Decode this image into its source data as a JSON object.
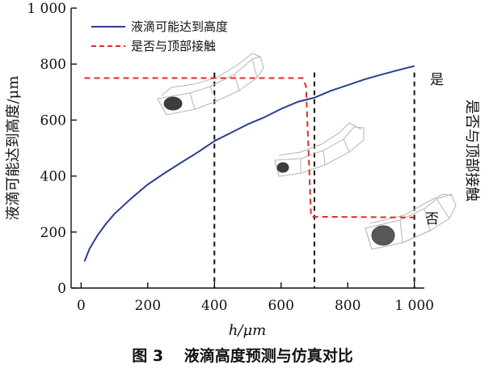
{
  "caption": "图 3　 液滴高度预测与仿真对比",
  "colors": {
    "series_height": "#2c3e8f",
    "series_contact": "#e02b2b",
    "guide": "#111111"
  },
  "chart_data": {
    "type": "line",
    "xlabel": "h/μm",
    "ylabel": "液滴可能达到高度/μm",
    "y2label": "是否与顶部接触",
    "xlim": [
      -30,
      1030
    ],
    "ylim": [
      0,
      1000
    ],
    "xticks": [
      {
        "value": 0,
        "label": "0"
      },
      {
        "value": 200,
        "label": "200"
      },
      {
        "value": 400,
        "label": "400"
      },
      {
        "value": 600,
        "label": "600"
      },
      {
        "value": 800,
        "label": "800"
      },
      {
        "value": 1000,
        "label": "1 000"
      }
    ],
    "yticks": [
      {
        "value": 0,
        "label": "0"
      },
      {
        "value": 200,
        "label": "200"
      },
      {
        "value": 400,
        "label": "400"
      },
      {
        "value": 600,
        "label": "600"
      },
      {
        "value": 800,
        "label": "800"
      },
      {
        "value": 1000,
        "label": "1 000"
      }
    ],
    "legend_position": "top-left",
    "series": [
      {
        "name": "液滴可能达到高度",
        "style": "solid",
        "x": [
          10,
          25,
          50,
          75,
          100,
          150,
          200,
          250,
          300,
          350,
          400,
          450,
          500,
          550,
          600,
          650,
          700,
          750,
          800,
          850,
          900,
          950,
          1000
        ],
        "y": [
          95,
          140,
          190,
          230,
          265,
          320,
          370,
          410,
          448,
          485,
          525,
          555,
          585,
          610,
          640,
          665,
          680,
          705,
          725,
          745,
          762,
          778,
          793
        ]
      },
      {
        "name": "是否与顶部接触",
        "style": "dashed",
        "x": [
          10,
          665,
          675,
          690,
          1000
        ],
        "y": [
          750,
          750,
          720,
          255,
          252
        ]
      }
    ],
    "reference_lines_x": [
      400,
      700,
      1000
    ],
    "annotations": [
      "是",
      "否"
    ]
  }
}
